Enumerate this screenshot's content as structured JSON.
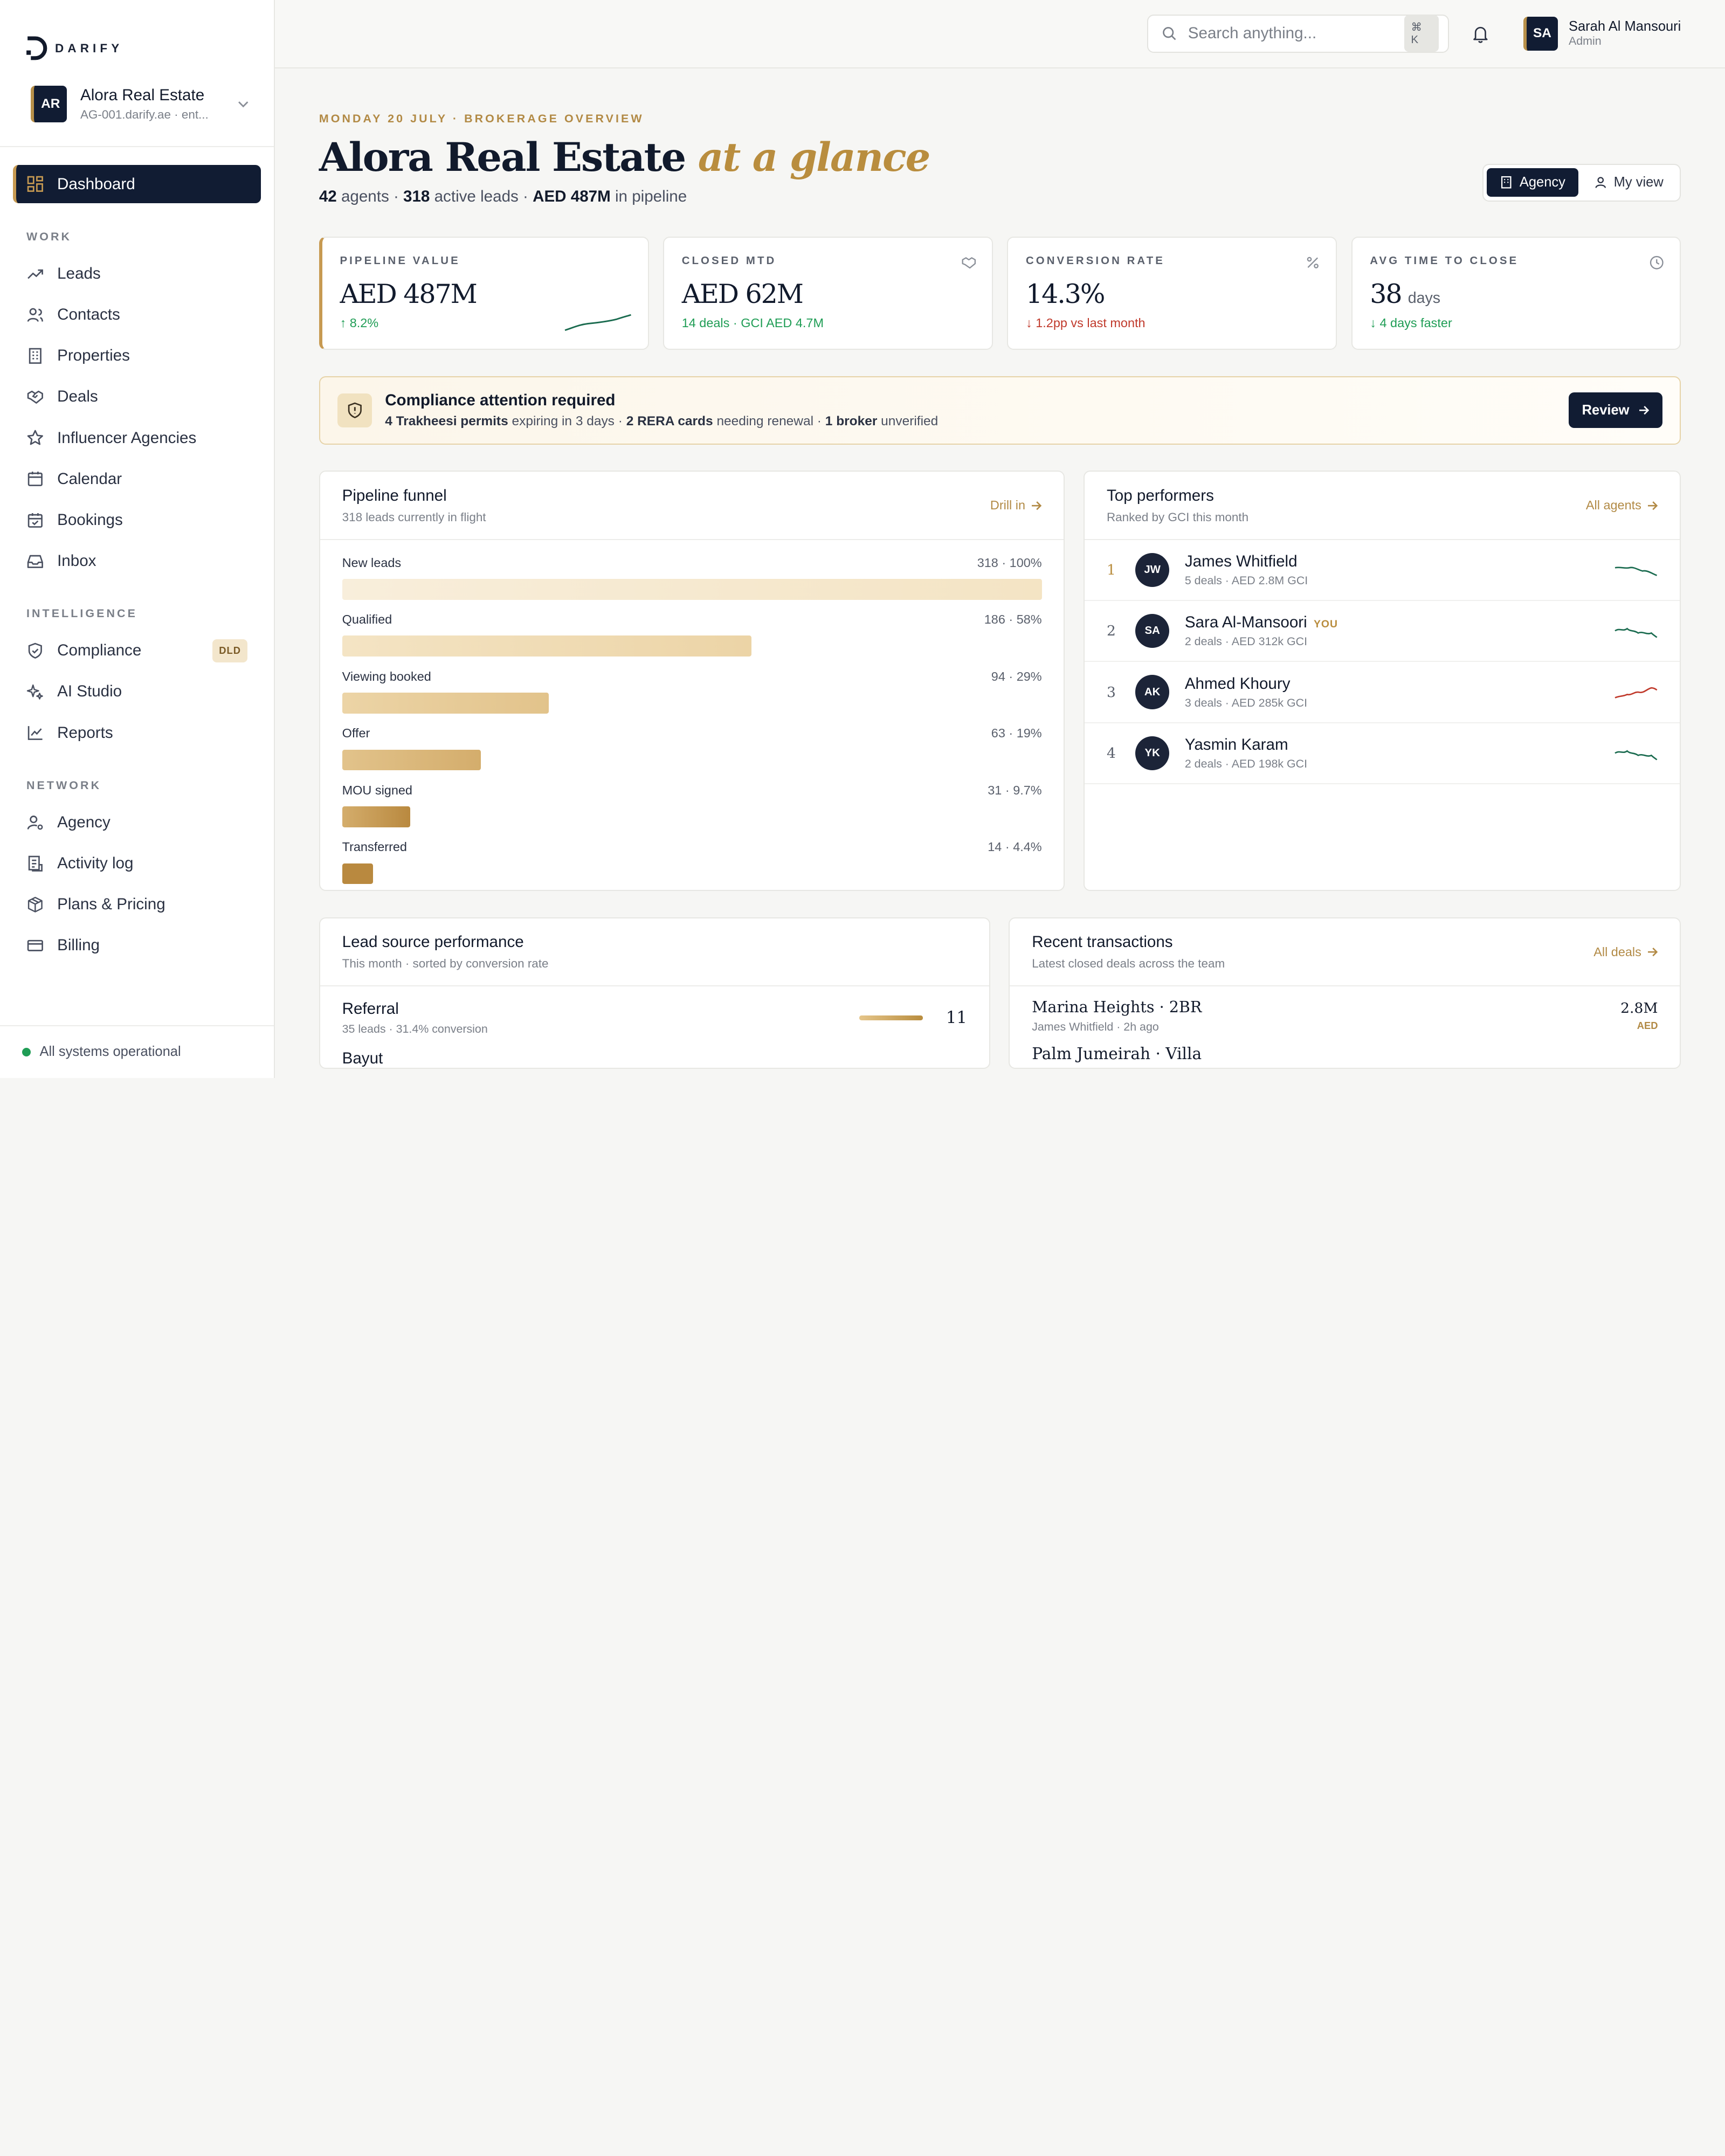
{
  "brand": {
    "name": "DARIFY"
  },
  "org": {
    "initials": "AR",
    "name": "Alora Real Estate",
    "sub": "AG-001.darify.ae · ent..."
  },
  "nav": {
    "dashboard": "Dashboard",
    "sections": {
      "work": "WORK",
      "intelligence": "INTELLIGENCE",
      "network": "NETWORK"
    },
    "work": [
      "Leads",
      "Contacts",
      "Properties",
      "Deals",
      "Influencer Agencies",
      "Calendar",
      "Bookings",
      "Inbox"
    ],
    "intelligence": [
      "Compliance",
      "AI Studio",
      "Reports"
    ],
    "compliance_badge": "DLD",
    "network": [
      "Agency",
      "Activity log",
      "Plans & Pricing",
      "Billing"
    ]
  },
  "system_status": "All systems operational",
  "topbar": {
    "search_placeholder": "Search anything...",
    "shortcut": "⌘ K",
    "user": {
      "initials": "SA",
      "name": "Sarah Al Mansouri",
      "role": "Admin"
    }
  },
  "header": {
    "eyebrow": "MONDAY 20 JULY · BROKERAGE OVERVIEW",
    "title": "Alora Real Estate",
    "title_accent": "at a glance",
    "stats": {
      "agents": "42",
      "agents_label": "agents ·",
      "leads": "318",
      "leads_label": "active leads ·",
      "pipeline": "AED 487M",
      "pipeline_label": "in pipeline"
    },
    "view_toggle": [
      "Agency",
      "My view"
    ]
  },
  "kpis": [
    {
      "label": "PIPELINE VALUE",
      "value": "AED 487M",
      "delta": "↑ 8.2%",
      "trend": "up"
    },
    {
      "label": "CLOSED MTD",
      "value": "AED 62M",
      "delta": "14 deals · GCI AED 4.7M",
      "trend": "up"
    },
    {
      "label": "CONVERSION RATE",
      "value": "14.3%",
      "delta": "↓ 1.2pp vs last month",
      "trend": "down"
    },
    {
      "label": "AVG TIME TO CLOSE",
      "value": "38",
      "unit": "days",
      "delta": "↓ 4 days faster",
      "trend": "up"
    }
  ],
  "alert": {
    "title": "Compliance attention required",
    "p1b": "4 Trakheesi permits",
    "p1": "expiring in 3 days ·",
    "p2b": "2 RERA cards",
    "p2": "needing renewal ·",
    "p3b": "1 broker",
    "p3": "unverified",
    "button": "Review"
  },
  "funnel": {
    "title": "Pipeline funnel",
    "subtitle": "318 leads currently in flight",
    "link": "Drill in",
    "stages": [
      {
        "name": "New leads",
        "count": 318,
        "pct": "100%",
        "label": "318 · 100%"
      },
      {
        "name": "Qualified",
        "count": 186,
        "pct": "58%",
        "label": "186 · 58%"
      },
      {
        "name": "Viewing booked",
        "count": 94,
        "pct": "29%",
        "label": "94 · 29%"
      },
      {
        "name": "Offer",
        "count": 63,
        "pct": "19%",
        "label": "63 · 19%"
      },
      {
        "name": "MOU signed",
        "count": 31,
        "pct": "9.7%",
        "label": "31 · 9.7%"
      },
      {
        "name": "Transferred",
        "count": 14,
        "pct": "4.4%",
        "label": "14 · 4.4%"
      }
    ]
  },
  "performers": {
    "title": "Top performers",
    "subtitle": "Ranked by GCI this month",
    "link": "All agents",
    "you_label": "YOU",
    "rows": [
      {
        "rank": "1",
        "initials": "JW",
        "name": "James Whitfield",
        "meta": "5 deals · AED 2.8M GCI",
        "trend": "down",
        "color": "#1a6b4f"
      },
      {
        "rank": "2",
        "initials": "SA",
        "name": "Sara Al-Mansoori",
        "meta": "2 deals · AED 312k GCI",
        "you": true,
        "trend": "down",
        "color": "#1a6b4f"
      },
      {
        "rank": "3",
        "initials": "AK",
        "name": "Ahmed Khoury",
        "meta": "3 deals · AED 285k GCI",
        "trend": "up",
        "color": "#c0392b"
      },
      {
        "rank": "4",
        "initials": "YK",
        "name": "Yasmin Karam",
        "meta": "2 deals · AED 198k GCI",
        "trend": "down",
        "color": "#1a6b4f"
      }
    ]
  },
  "lead_sources": {
    "title": "Lead source performance",
    "subtitle": "This month · sorted by conversion rate",
    "rows": [
      {
        "name": "Referral",
        "meta": "35 leads · 31.4% conversion",
        "value": "11",
        "conversion": 0.314
      }
    ],
    "peek": "Bayut"
  },
  "transactions": {
    "title": "Recent transactions",
    "subtitle": "Latest closed deals across the team",
    "link": "All deals",
    "rows": [
      {
        "name": "Marina Heights · 2BR",
        "meta": "James Whitfield · 2h ago",
        "amount": "2.8M",
        "currency": "AED"
      }
    ],
    "peek": "Palm Jumeirah · Villa"
  },
  "colors": {
    "navy": "#111c33",
    "gold": "#b98d3e",
    "green": "#1f9d55",
    "red": "#c0392b"
  }
}
